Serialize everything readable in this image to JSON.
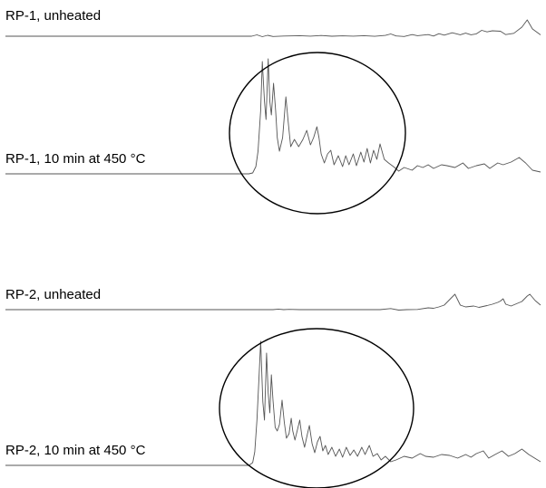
{
  "chart_data": {
    "type": "line",
    "title": "",
    "xlabel": "",
    "ylabel": "",
    "axes_visible": false,
    "grid": false,
    "legend": "none",
    "line_color": "#555555",
    "highlight_color": "#000000",
    "traces": [
      {
        "name": "RP-1, unheated",
        "points": [
          [
            0.0,
            0.0
          ],
          [
            0.46,
            0.0
          ],
          [
            0.47,
            -1.5
          ],
          [
            0.48,
            0.5
          ],
          [
            0.49,
            -1.0
          ],
          [
            0.5,
            0.3
          ],
          [
            0.52,
            -0.2
          ],
          [
            0.55,
            -0.6
          ],
          [
            0.57,
            -0.1
          ],
          [
            0.59,
            -0.8
          ],
          [
            0.61,
            0.0
          ],
          [
            0.63,
            -0.4
          ],
          [
            0.65,
            -0.1
          ],
          [
            0.67,
            -0.6
          ],
          [
            0.69,
            0.1
          ],
          [
            0.71,
            -0.9
          ],
          [
            0.72,
            -2.5
          ],
          [
            0.73,
            -0.3
          ],
          [
            0.745,
            0.3
          ],
          [
            0.76,
            -1.8
          ],
          [
            0.77,
            -0.6
          ],
          [
            0.79,
            -1.8
          ],
          [
            0.8,
            -0.2
          ],
          [
            0.81,
            -2.8
          ],
          [
            0.82,
            -1.2
          ],
          [
            0.835,
            -3.8
          ],
          [
            0.85,
            -1.6
          ],
          [
            0.86,
            -3.4
          ],
          [
            0.87,
            -1.6
          ],
          [
            0.88,
            -2.6
          ],
          [
            0.89,
            -6.5
          ],
          [
            0.9,
            -4.8
          ],
          [
            0.91,
            -6.0
          ],
          [
            0.925,
            -5.5
          ],
          [
            0.935,
            -1.8
          ],
          [
            0.95,
            -3.2
          ],
          [
            0.965,
            -10.0
          ],
          [
            0.975,
            -18.0
          ],
          [
            0.985,
            -8.0
          ],
          [
            1.0,
            -1.5
          ]
        ]
      },
      {
        "name": "RP-1, 10 min at 450 °C",
        "points": [
          [
            0.0,
            0.0
          ],
          [
            0.455,
            0.0
          ],
          [
            0.462,
            -1.0
          ],
          [
            0.468,
            -8.0
          ],
          [
            0.472,
            -25.0
          ],
          [
            0.477,
            -70.0
          ],
          [
            0.48,
            -124.0
          ],
          [
            0.484,
            -80.0
          ],
          [
            0.487,
            -60.0
          ],
          [
            0.491,
            -127.0
          ],
          [
            0.494,
            -80.0
          ],
          [
            0.497,
            -65.0
          ],
          [
            0.501,
            -100.0
          ],
          [
            0.505,
            -70.0
          ],
          [
            0.508,
            -40.0
          ],
          [
            0.512,
            -25.0
          ],
          [
            0.518,
            -40.0
          ],
          [
            0.524,
            -85.0
          ],
          [
            0.528,
            -60.0
          ],
          [
            0.533,
            -30.0
          ],
          [
            0.54,
            -38.0
          ],
          [
            0.548,
            -30.0
          ],
          [
            0.556,
            -38.0
          ],
          [
            0.563,
            -48.0
          ],
          [
            0.57,
            -32.0
          ],
          [
            0.576,
            -40.0
          ],
          [
            0.582,
            -52.0
          ],
          [
            0.586,
            -40.0
          ],
          [
            0.59,
            -22.0
          ],
          [
            0.596,
            -12.0
          ],
          [
            0.602,
            -22.0
          ],
          [
            0.608,
            -26.0
          ],
          [
            0.614,
            -10.0
          ],
          [
            0.622,
            -20.0
          ],
          [
            0.63,
            -8.0
          ],
          [
            0.636,
            -20.0
          ],
          [
            0.642,
            -10.0
          ],
          [
            0.65,
            -22.0
          ],
          [
            0.656,
            -9.0
          ],
          [
            0.664,
            -24.0
          ],
          [
            0.67,
            -13.0
          ],
          [
            0.676,
            -28.0
          ],
          [
            0.682,
            -12.0
          ],
          [
            0.688,
            -26.0
          ],
          [
            0.694,
            -16.0
          ],
          [
            0.7,
            -33.0
          ],
          [
            0.708,
            -16.0
          ],
          [
            0.716,
            -12.0
          ],
          [
            0.725,
            -8.0
          ],
          [
            0.735,
            -3.0
          ],
          [
            0.745,
            -7.0
          ],
          [
            0.76,
            -4.0
          ],
          [
            0.77,
            -9.0
          ],
          [
            0.78,
            -7.0
          ],
          [
            0.79,
            -10.0
          ],
          [
            0.8,
            -6.0
          ],
          [
            0.815,
            -10.0
          ],
          [
            0.825,
            -9.0
          ],
          [
            0.84,
            -7.0
          ],
          [
            0.855,
            -12.0
          ],
          [
            0.865,
            -6.0
          ],
          [
            0.88,
            -9.0
          ],
          [
            0.895,
            -11.0
          ],
          [
            0.905,
            -6.0
          ],
          [
            0.92,
            -12.0
          ],
          [
            0.93,
            -10.0
          ],
          [
            0.945,
            -13.0
          ],
          [
            0.96,
            -18.0
          ],
          [
            0.972,
            -12.0
          ],
          [
            0.985,
            -4.0
          ],
          [
            1.0,
            -2.0
          ]
        ]
      },
      {
        "name": "RP-2, unheated",
        "points": [
          [
            0.0,
            0.0
          ],
          [
            0.5,
            0.0
          ],
          [
            0.51,
            -0.6
          ],
          [
            0.52,
            0.0
          ],
          [
            0.53,
            -0.3
          ],
          [
            0.55,
            0.0
          ],
          [
            0.7,
            0.0
          ],
          [
            0.72,
            -1.2
          ],
          [
            0.735,
            0.5
          ],
          [
            0.75,
            0.0
          ],
          [
            0.77,
            -0.2
          ],
          [
            0.79,
            -2.0
          ],
          [
            0.8,
            -1.5
          ],
          [
            0.81,
            -3.0
          ],
          [
            0.82,
            -5.0
          ],
          [
            0.835,
            -14.0
          ],
          [
            0.84,
            -17.0
          ],
          [
            0.85,
            -5.0
          ],
          [
            0.86,
            -3.0
          ],
          [
            0.875,
            -4.0
          ],
          [
            0.885,
            -2.5
          ],
          [
            0.9,
            -4.5
          ],
          [
            0.91,
            -6.0
          ],
          [
            0.92,
            -8.0
          ],
          [
            0.925,
            -9.5
          ],
          [
            0.93,
            -12.0
          ],
          [
            0.935,
            -6.0
          ],
          [
            0.945,
            -4.0
          ],
          [
            0.955,
            -6.5
          ],
          [
            0.965,
            -9.0
          ],
          [
            0.975,
            -15.0
          ],
          [
            0.98,
            -17.0
          ],
          [
            0.99,
            -10.0
          ],
          [
            1.0,
            -5.0
          ]
        ]
      },
      {
        "name": "RP-2, 10 min at 450 °C",
        "points": [
          [
            0.0,
            0.0
          ],
          [
            0.455,
            0.0
          ],
          [
            0.462,
            -3.0
          ],
          [
            0.466,
            -15.0
          ],
          [
            0.47,
            -50.0
          ],
          [
            0.474,
            -100.0
          ],
          [
            0.477,
            -137.0
          ],
          [
            0.481,
            -70.0
          ],
          [
            0.484,
            -50.0
          ],
          [
            0.488,
            -124.0
          ],
          [
            0.491,
            -80.0
          ],
          [
            0.494,
            -58.0
          ],
          [
            0.497,
            -100.0
          ],
          [
            0.5,
            -72.0
          ],
          [
            0.504,
            -42.0
          ],
          [
            0.508,
            -38.0
          ],
          [
            0.512,
            -45.0
          ],
          [
            0.517,
            -72.0
          ],
          [
            0.521,
            -48.0
          ],
          [
            0.525,
            -30.0
          ],
          [
            0.53,
            -35.0
          ],
          [
            0.534,
            -52.0
          ],
          [
            0.537,
            -38.0
          ],
          [
            0.541,
            -28.0
          ],
          [
            0.546,
            -40.0
          ],
          [
            0.55,
            -50.0
          ],
          [
            0.554,
            -32.0
          ],
          [
            0.559,
            -20.0
          ],
          [
            0.564,
            -34.0
          ],
          [
            0.568,
            -44.0
          ],
          [
            0.573,
            -24.0
          ],
          [
            0.578,
            -14.0
          ],
          [
            0.583,
            -26.0
          ],
          [
            0.588,
            -32.0
          ],
          [
            0.593,
            -16.0
          ],
          [
            0.598,
            -22.0
          ],
          [
            0.603,
            -12.0
          ],
          [
            0.61,
            -20.0
          ],
          [
            0.617,
            -10.0
          ],
          [
            0.624,
            -18.0
          ],
          [
            0.63,
            -9.0
          ],
          [
            0.637,
            -20.0
          ],
          [
            0.644,
            -11.0
          ],
          [
            0.651,
            -17.0
          ],
          [
            0.658,
            -10.0
          ],
          [
            0.666,
            -20.0
          ],
          [
            0.672,
            -12.0
          ],
          [
            0.68,
            -22.0
          ],
          [
            0.687,
            -10.0
          ],
          [
            0.695,
            -13.0
          ],
          [
            0.702,
            -6.0
          ],
          [
            0.71,
            -10.0
          ],
          [
            0.72,
            -4.0
          ],
          [
            0.73,
            -6.0
          ],
          [
            0.745,
            -10.0
          ],
          [
            0.76,
            -8.0
          ],
          [
            0.775,
            -13.0
          ],
          [
            0.785,
            -10.0
          ],
          [
            0.8,
            -9.0
          ],
          [
            0.815,
            -12.0
          ],
          [
            0.83,
            -11.0
          ],
          [
            0.845,
            -8.0
          ],
          [
            0.86,
            -12.0
          ],
          [
            0.87,
            -9.0
          ],
          [
            0.88,
            -13.0
          ],
          [
            0.893,
            -16.0
          ],
          [
            0.903,
            -8.0
          ],
          [
            0.915,
            -12.0
          ],
          [
            0.928,
            -16.0
          ],
          [
            0.94,
            -10.0
          ],
          [
            0.952,
            -13.0
          ],
          [
            0.965,
            -18.0
          ],
          [
            0.978,
            -12.0
          ],
          [
            1.0,
            -4.0
          ]
        ]
      }
    ],
    "highlighted_traces": [
      "RP-1, 10 min at 450 °C",
      "RP-2, 10 min at 450 °C"
    ]
  }
}
